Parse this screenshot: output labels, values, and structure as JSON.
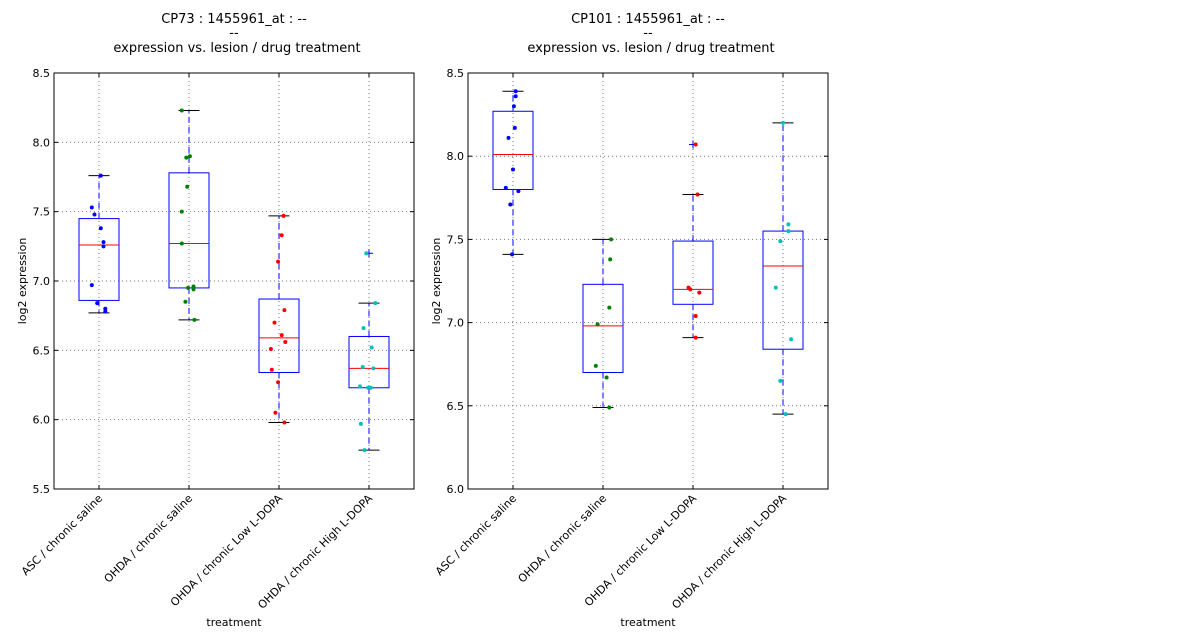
{
  "chart_data": [
    {
      "type": "box",
      "title_lines": [
        "CP73 : 1455961_at : --",
        "--",
        "expression vs. lesion / drug treatment"
      ],
      "xlabel": "treatment",
      "ylabel": "log2 expression",
      "ylim": [
        5.5,
        8.5
      ],
      "yticks": [
        5.5,
        6.0,
        6.5,
        7.0,
        7.5,
        8.0,
        8.5
      ],
      "ytick_labels": [
        "5.5",
        "6.0",
        "6.5",
        "7.0",
        "7.5",
        "8.0",
        "8.5"
      ],
      "grid": true,
      "categories": [
        "ASC / chronic saline",
        "OHDA / chronic saline",
        "OHDA / chronic Low L-DOPA",
        "OHDA / chronic High L-DOPA"
      ],
      "point_colors": [
        "#0000ff",
        "#008000",
        "#ff0000",
        "#00bfbf"
      ],
      "boxes": [
        {
          "whisker_low": 6.77,
          "q1": 6.86,
          "median": 7.26,
          "q3": 7.45,
          "whisker_high": 7.76,
          "outliers": []
        },
        {
          "whisker_low": 6.72,
          "q1": 6.95,
          "median": 7.27,
          "q3": 7.78,
          "whisker_high": 8.23,
          "outliers": []
        },
        {
          "whisker_low": 5.98,
          "q1": 6.34,
          "median": 6.59,
          "q3": 6.87,
          "whisker_high": 7.47,
          "outliers": []
        },
        {
          "whisker_low": 5.78,
          "q1": 6.23,
          "median": 6.37,
          "q3": 6.6,
          "whisker_high": 6.84,
          "outliers": [
            7.2
          ]
        }
      ],
      "points": [
        [
          [
            -0.08,
            7.53
          ],
          [
            -0.05,
            7.48
          ],
          [
            0.02,
            7.76
          ],
          [
            0.02,
            7.38
          ],
          [
            0.05,
            7.28
          ],
          [
            0.05,
            7.25
          ],
          [
            -0.08,
            6.97
          ],
          [
            -0.02,
            6.84
          ],
          [
            0.07,
            6.8
          ],
          [
            0.07,
            6.78
          ]
        ],
        [
          [
            -0.08,
            8.23
          ],
          [
            -0.03,
            7.89
          ],
          [
            0.01,
            7.9
          ],
          [
            -0.02,
            7.68
          ],
          [
            -0.08,
            7.5
          ],
          [
            -0.08,
            7.27
          ],
          [
            -0.01,
            6.95
          ],
          [
            0.05,
            6.96
          ],
          [
            0.05,
            6.94
          ],
          [
            -0.04,
            6.85
          ],
          [
            0.06,
            6.72
          ]
        ],
        [
          [
            0.05,
            7.47
          ],
          [
            0.03,
            7.33
          ],
          [
            -0.01,
            7.14
          ],
          [
            0.06,
            6.79
          ],
          [
            -0.05,
            6.7
          ],
          [
            0.03,
            6.61
          ],
          [
            0.07,
            6.56
          ],
          [
            -0.09,
            6.51
          ],
          [
            -0.08,
            6.36
          ],
          [
            -0.01,
            6.27
          ],
          [
            -0.04,
            6.05
          ],
          [
            0.06,
            5.98
          ]
        ],
        [
          [
            -0.03,
            7.2
          ],
          [
            0.07,
            6.84
          ],
          [
            -0.06,
            6.66
          ],
          [
            0.03,
            6.52
          ],
          [
            -0.07,
            6.38
          ],
          [
            0.05,
            6.37
          ],
          [
            -0.1,
            6.24
          ],
          [
            -0.01,
            6.23
          ],
          [
            0.02,
            6.23
          ],
          [
            -0.09,
            5.97
          ],
          [
            -0.05,
            5.78
          ]
        ]
      ]
    },
    {
      "type": "box",
      "title_lines": [
        "CP101 : 1455961_at : --",
        "--",
        "expression vs. lesion / drug treatment"
      ],
      "xlabel": "treatment",
      "ylabel": "log2 expression",
      "ylim": [
        6.0,
        8.5
      ],
      "yticks": [
        6.0,
        6.5,
        7.0,
        7.5,
        8.0,
        8.5
      ],
      "ytick_labels": [
        "6.0",
        "6.5",
        "7.0",
        "7.5",
        "8.0",
        "8.5"
      ],
      "grid": true,
      "categories": [
        "ASC / chronic saline",
        "OHDA / chronic saline",
        "OHDA / chronic Low L-DOPA",
        "OHDA / chronic High L-DOPA"
      ],
      "point_colors": [
        "#0000ff",
        "#008000",
        "#ff0000",
        "#00bfbf"
      ],
      "boxes": [
        {
          "whisker_low": 7.41,
          "q1": 7.8,
          "median": 8.01,
          "q3": 8.27,
          "whisker_high": 8.39,
          "outliers": []
        },
        {
          "whisker_low": 6.49,
          "q1": 6.7,
          "median": 6.98,
          "q3": 7.23,
          "whisker_high": 7.5,
          "outliers": []
        },
        {
          "whisker_low": 6.91,
          "q1": 7.11,
          "median": 7.2,
          "q3": 7.49,
          "whisker_high": 7.77,
          "outliers": [
            8.07
          ]
        },
        {
          "whisker_low": 6.45,
          "q1": 6.84,
          "median": 7.34,
          "q3": 7.55,
          "whisker_high": 8.2,
          "outliers": []
        }
      ],
      "points": [
        [
          [
            0.03,
            8.39
          ],
          [
            0.03,
            8.36
          ],
          [
            0.01,
            8.3
          ],
          [
            0.02,
            8.17
          ],
          [
            -0.05,
            8.11
          ],
          [
            0.0,
            7.92
          ],
          [
            -0.08,
            7.81
          ],
          [
            0.06,
            7.79
          ],
          [
            -0.03,
            7.71
          ],
          [
            -0.01,
            7.41
          ]
        ],
        [
          [
            0.09,
            7.5
          ],
          [
            0.08,
            7.38
          ],
          [
            0.07,
            7.09
          ],
          [
            -0.06,
            6.99
          ],
          [
            -0.08,
            6.74
          ],
          [
            0.04,
            6.67
          ],
          [
            0.07,
            6.49
          ]
        ],
        [
          [
            0.03,
            8.07
          ],
          [
            0.05,
            7.77
          ],
          [
            -0.05,
            7.21
          ],
          [
            -0.03,
            7.2
          ],
          [
            0.07,
            7.18
          ],
          [
            0.03,
            7.04
          ],
          [
            0.03,
            6.91
          ]
        ],
        [
          [
            0.0,
            8.2
          ],
          [
            0.06,
            7.59
          ],
          [
            0.06,
            7.55
          ],
          [
            -0.03,
            7.49
          ],
          [
            -0.08,
            7.21
          ],
          [
            0.09,
            6.9
          ],
          [
            -0.03,
            6.65
          ],
          [
            0.03,
            6.45
          ]
        ]
      ]
    }
  ]
}
